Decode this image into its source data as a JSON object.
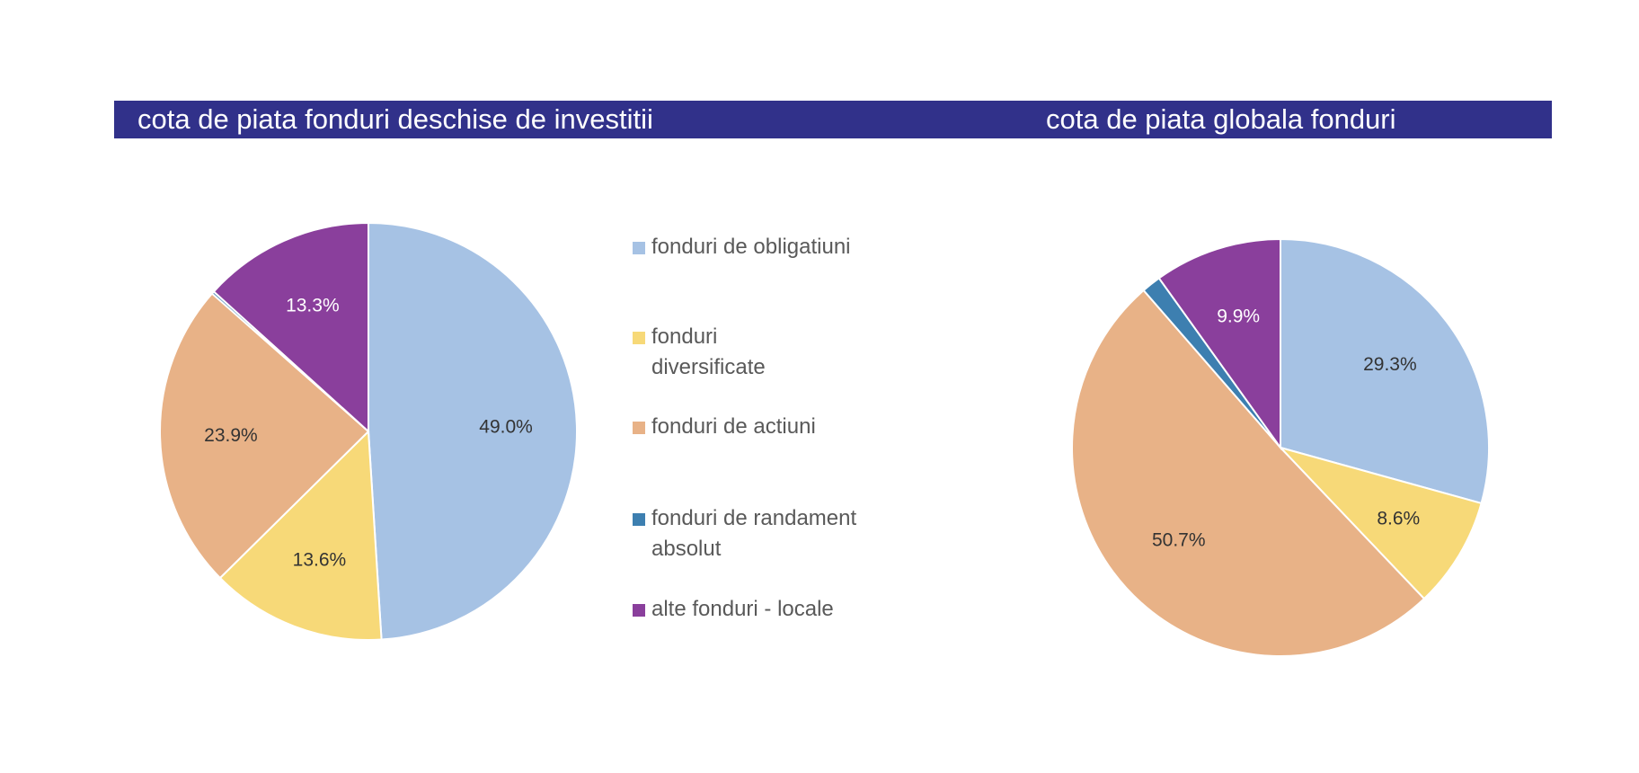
{
  "banner": {
    "left_title": "cota de piata fonduri deschise de investitii",
    "right_title": "cota de piata globala fonduri"
  },
  "legend": {
    "items": [
      {
        "label": "fonduri de obligatiuni",
        "color": "#a6c2e4"
      },
      {
        "label": "fonduri diversificate",
        "color": "#f7d978"
      },
      {
        "label": "fonduri de actiuni",
        "color": "#e8b287"
      },
      {
        "label": "fonduri de randament absolut",
        "color": "#3d7fb0"
      },
      {
        "label": "alte fonduri - locale",
        "color": "#8a3f9c"
      }
    ]
  },
  "chart_data": [
    {
      "type": "pie",
      "title": "cota de piata fonduri deschise de investitii",
      "categories": [
        "fonduri de obligatiuni",
        "fonduri diversificate",
        "fonduri de actiuni",
        "fonduri de randament absolut",
        "alte fonduri - locale"
      ],
      "values": [
        49.0,
        13.6,
        23.9,
        0.2,
        13.3
      ],
      "labels": [
        "49.0%",
        "13.6%",
        "23.9%",
        "",
        "13.3%"
      ],
      "colors": [
        "#a6c2e4",
        "#f7d978",
        "#e8b287",
        "#3d7fb0",
        "#8a3f9c"
      ],
      "label_colors": [
        "#333333",
        "#333333",
        "#333333",
        "#333333",
        "#ffffff"
      ]
    },
    {
      "type": "pie",
      "title": "cota de piata globala fonduri",
      "categories": [
        "fonduri de obligatiuni",
        "fonduri diversificate",
        "fonduri de actiuni",
        "fonduri de randament absolut",
        "alte fonduri - locale"
      ],
      "values": [
        29.3,
        8.6,
        50.7,
        1.5,
        9.9
      ],
      "labels": [
        "29.3%",
        "8.6%",
        "50.7%",
        "",
        "9.9%"
      ],
      "colors": [
        "#a6c2e4",
        "#f7d978",
        "#e8b287",
        "#3d7fb0",
        "#8a3f9c"
      ],
      "label_colors": [
        "#333333",
        "#333333",
        "#333333",
        "#333333",
        "#ffffff"
      ]
    }
  ]
}
